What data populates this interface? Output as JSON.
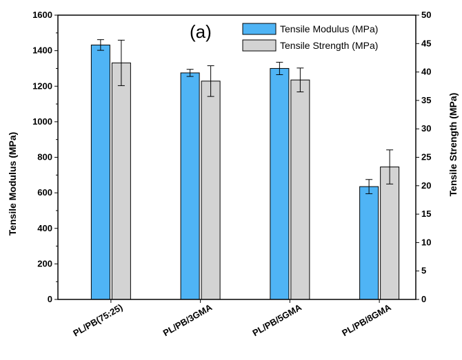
{
  "chart_data": {
    "type": "bar",
    "annotation": "(a)",
    "categories": [
      "PL/PB(75:25)",
      "PL/PB/3GMA",
      "PL/PB/5GMA",
      "PL/PB/8GMA"
    ],
    "ylabel": "Tensile Modulus (MPa)",
    "ylabel_right": "Tensile Strength (MPa)",
    "ylim": [
      0,
      1600
    ],
    "ylim_right": [
      0,
      50
    ],
    "yticks": [
      "0",
      "200",
      "400",
      "600",
      "800",
      "1000",
      "1200",
      "1400",
      "1600"
    ],
    "yticks_right": [
      "0",
      "5",
      "10",
      "15",
      "20",
      "25",
      "30",
      "35",
      "40",
      "45",
      "50"
    ],
    "legend_position": "top-right",
    "series": [
      {
        "name": "Tensile Modulus (MPa)",
        "axis": "left",
        "color": "#4fb4f5",
        "values": [
          1432,
          1275,
          1300,
          635
        ],
        "errors": [
          30,
          20,
          35,
          40
        ]
      },
      {
        "name": "Tensile Strength (MPa)",
        "axis": "right",
        "color": "#d3d3d3",
        "values": [
          41.6,
          38.4,
          38.6,
          23.3
        ],
        "errors": [
          4.0,
          2.7,
          2.1,
          3.0
        ]
      }
    ]
  }
}
